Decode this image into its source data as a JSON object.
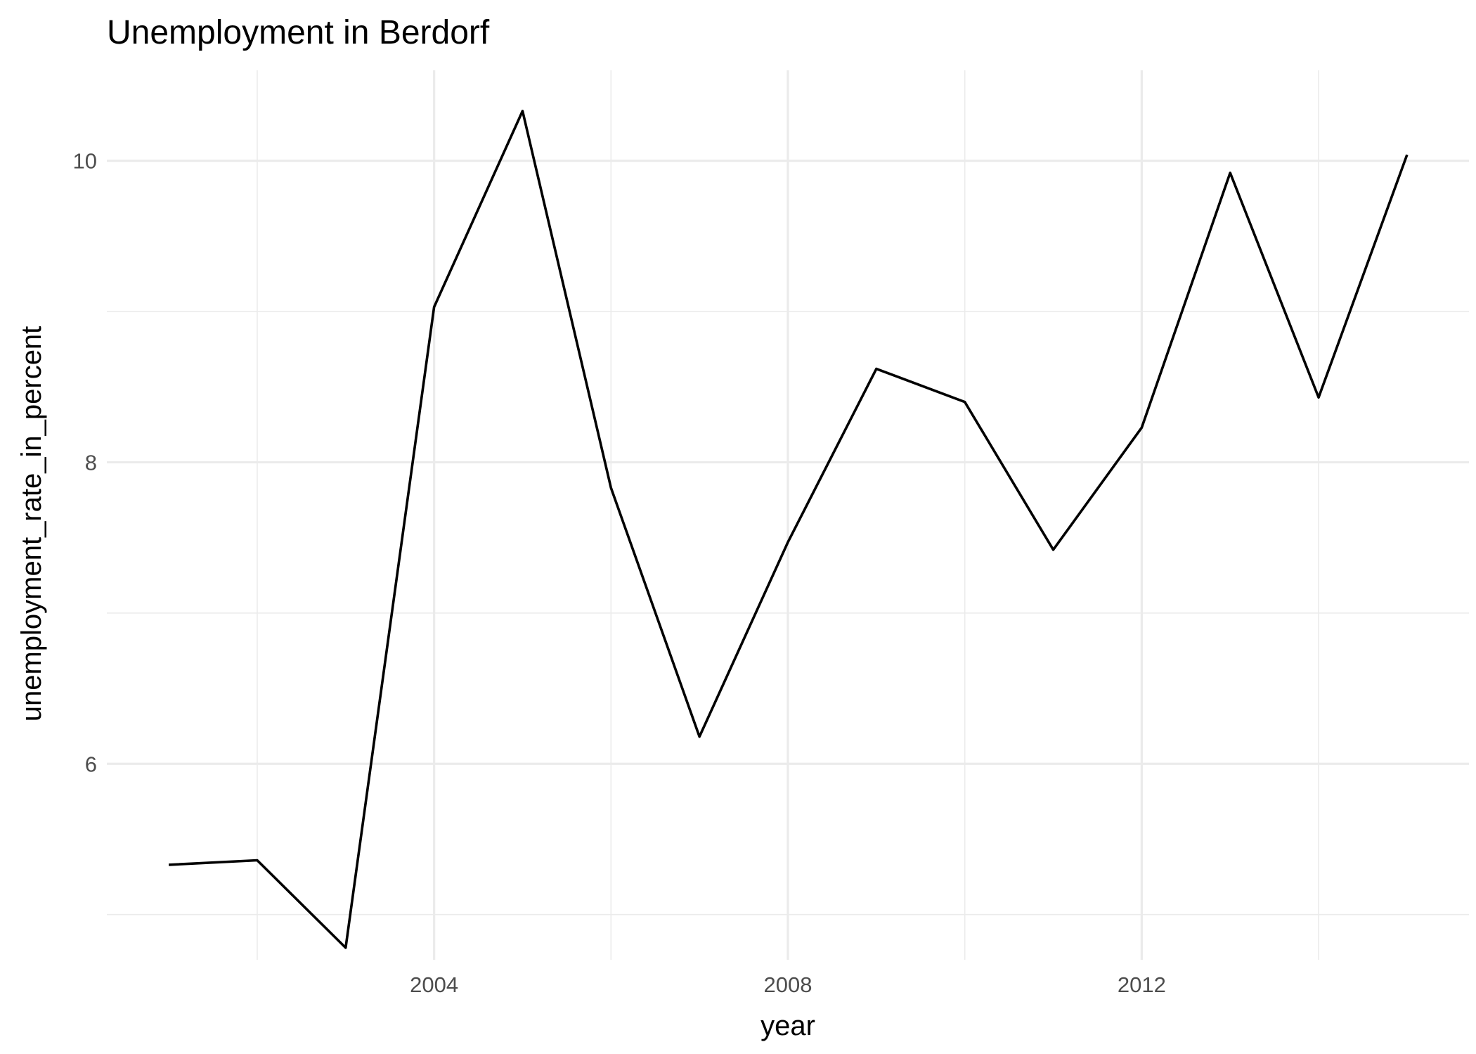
{
  "chart_data": {
    "type": "line",
    "title": "Unemployment in Berdorf",
    "xlabel": "year",
    "ylabel": "unemployment_rate_in_percent",
    "xlim": [
      2000.3,
      2015.7
    ],
    "ylim": [
      4.7,
      10.6
    ],
    "x_major_ticks": [
      2004,
      2008,
      2012
    ],
    "x_major_tick_labels": [
      "2004",
      "2008",
      "2012"
    ],
    "x_minor_ticks": [
      2002,
      2006,
      2010,
      2014
    ],
    "y_major_ticks": [
      6,
      8,
      10
    ],
    "y_major_tick_labels": [
      "6",
      "8",
      "10"
    ],
    "y_minor_ticks": [
      5,
      7,
      9
    ],
    "grid": true,
    "legend": "none",
    "line_color": "#000000",
    "grid_color": "#ebebeb",
    "x": [
      2001,
      2002,
      2003,
      2004,
      2005,
      2006,
      2007,
      2008,
      2009,
      2010,
      2011,
      2012,
      2013,
      2014,
      2015
    ],
    "series": [
      {
        "values": [
          5.33,
          5.36,
          4.78,
          9.03,
          10.33,
          7.83,
          6.18,
          7.47,
          8.62,
          8.4,
          7.42,
          8.23,
          9.92,
          8.43,
          10.04
        ]
      }
    ]
  }
}
